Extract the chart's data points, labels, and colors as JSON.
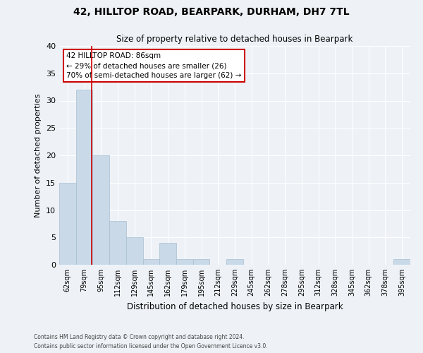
{
  "title1": "42, HILLTOP ROAD, BEARPARK, DURHAM, DH7 7TL",
  "title2": "Size of property relative to detached houses in Bearpark",
  "xlabel": "Distribution of detached houses by size in Bearpark",
  "ylabel": "Number of detached properties",
  "bins": [
    "62sqm",
    "79sqm",
    "95sqm",
    "112sqm",
    "129sqm",
    "145sqm",
    "162sqm",
    "179sqm",
    "195sqm",
    "212sqm",
    "229sqm",
    "245sqm",
    "262sqm",
    "278sqm",
    "295sqm",
    "312sqm",
    "328sqm",
    "345sqm",
    "362sqm",
    "378sqm",
    "395sqm"
  ],
  "values": [
    15,
    32,
    20,
    8,
    5,
    1,
    4,
    1,
    1,
    0,
    1,
    0,
    0,
    0,
    0,
    0,
    0,
    0,
    0,
    0,
    1
  ],
  "bar_color": "#c9d9e8",
  "bar_edge_color": "#a8bfd0",
  "red_line_x": 1.43,
  "ylim": [
    0,
    40
  ],
  "yticks": [
    0,
    5,
    10,
    15,
    20,
    25,
    30,
    35,
    40
  ],
  "annotation_text": "42 HILLTOP ROAD: 86sqm\n← 29% of detached houses are smaller (26)\n70% of semi-detached houses are larger (62) →",
  "annotation_box_color": "#ffffff",
  "annotation_box_edge": "#cc0000",
  "footer1": "Contains HM Land Registry data © Crown copyright and database right 2024.",
  "footer2": "Contains public sector information licensed under the Open Government Licence v3.0.",
  "bg_color": "#eef2f7",
  "plot_bg_color": "#eef2f7",
  "grid_color": "#ffffff"
}
